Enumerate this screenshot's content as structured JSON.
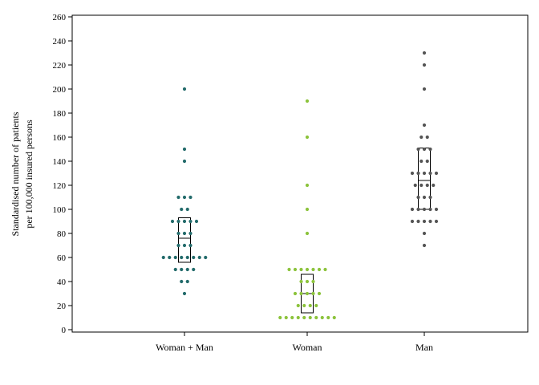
{
  "chart_data": {
    "type": "scatter",
    "title": "",
    "xlabel": "",
    "ylabel_lines": [
      "Standardised number of patients",
      "per 100,000 insured persons"
    ],
    "ylim": [
      0,
      260
    ],
    "ytick_step": 20,
    "grid": false,
    "legend": "none",
    "categories": [
      "Woman + Man",
      "Woman",
      "Man"
    ],
    "series": [
      {
        "category": "Woman + Man",
        "color": "#236b6b",
        "points": [
          200,
          150,
          140,
          110,
          110,
          110,
          100,
          100,
          90,
          90,
          90,
          90,
          90,
          80,
          80,
          80,
          70,
          70,
          70,
          60,
          60,
          60,
          60,
          60,
          60,
          60,
          60,
          50,
          50,
          50,
          50,
          40,
          40,
          30
        ],
        "box": {
          "q1": 56,
          "median": 76,
          "q3": 93
        }
      },
      {
        "category": "Woman",
        "color": "#8cc33c",
        "points": [
          190,
          160,
          120,
          100,
          80,
          50,
          50,
          50,
          50,
          50,
          50,
          50,
          40,
          40,
          40,
          30,
          30,
          30,
          30,
          30,
          20,
          20,
          20,
          20,
          10,
          10,
          10,
          10,
          10,
          10,
          10,
          10,
          10,
          10
        ],
        "box": {
          "q1": 14,
          "median": 30,
          "q3": 46
        }
      },
      {
        "category": "Man",
        "color": "#555555",
        "points": [
          230,
          220,
          200,
          170,
          160,
          160,
          150,
          150,
          150,
          140,
          140,
          130,
          130,
          130,
          130,
          130,
          120,
          120,
          120,
          120,
          110,
          110,
          110,
          100,
          100,
          100,
          100,
          100,
          90,
          90,
          90,
          90,
          90,
          80,
          70
        ],
        "box": {
          "q1": 100,
          "median": 124,
          "q3": 151
        }
      }
    ]
  }
}
